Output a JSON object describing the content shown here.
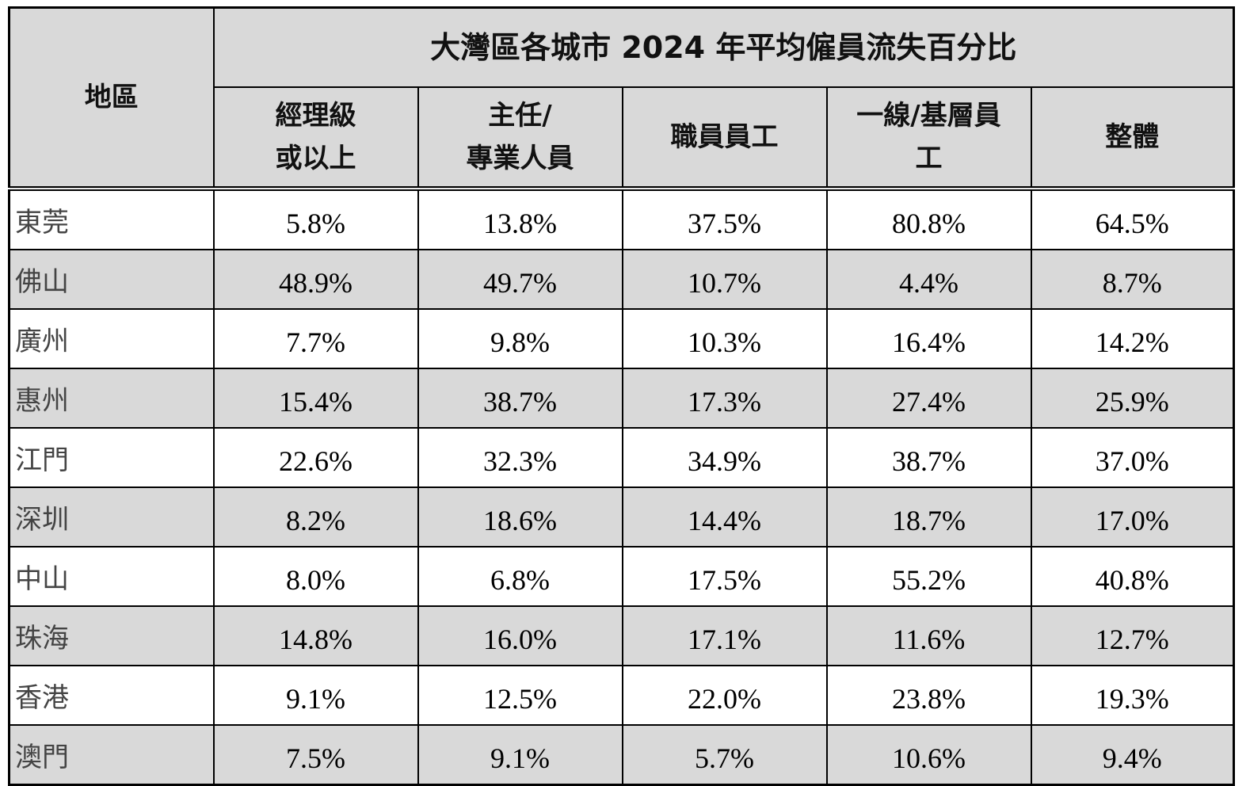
{
  "header": {
    "title": "大灣區各城市 2024 年平均僱員流失百分比",
    "region_label": "地區",
    "columns": [
      [
        "經理級",
        "或以上"
      ],
      [
        "主任/",
        "專業人員"
      ],
      [
        "職員員工"
      ],
      [
        "一線/基層員",
        "工"
      ],
      [
        "整體"
      ]
    ]
  },
  "table": {
    "rows": [
      [
        "東莞",
        "5.8%",
        "13.8%",
        "37.5%",
        "80.8%",
        "64.5%"
      ],
      [
        "佛山",
        "48.9%",
        "49.7%",
        "10.7%",
        "4.4%",
        "8.7%"
      ],
      [
        "廣州",
        "7.7%",
        "9.8%",
        "10.3%",
        "16.4%",
        "14.2%"
      ],
      [
        "惠州",
        "15.4%",
        "38.7%",
        "17.3%",
        "27.4%",
        "25.9%"
      ],
      [
        "江門",
        "22.6%",
        "32.3%",
        "34.9%",
        "38.7%",
        "37.0%"
      ],
      [
        "深圳",
        "8.2%",
        "18.6%",
        "14.4%",
        "18.7%",
        "17.0%"
      ],
      [
        "中山",
        "8.0%",
        "6.8%",
        "17.5%",
        "55.2%",
        "40.8%"
      ],
      [
        "珠海",
        "14.8%",
        "16.0%",
        "17.1%",
        "11.6%",
        "12.7%"
      ],
      [
        "香港",
        "9.1%",
        "12.5%",
        "22.0%",
        "23.8%",
        "19.3%"
      ],
      [
        "澳門",
        "7.5%",
        "9.1%",
        "5.7%",
        "10.6%",
        "9.4%"
      ]
    ]
  }
}
